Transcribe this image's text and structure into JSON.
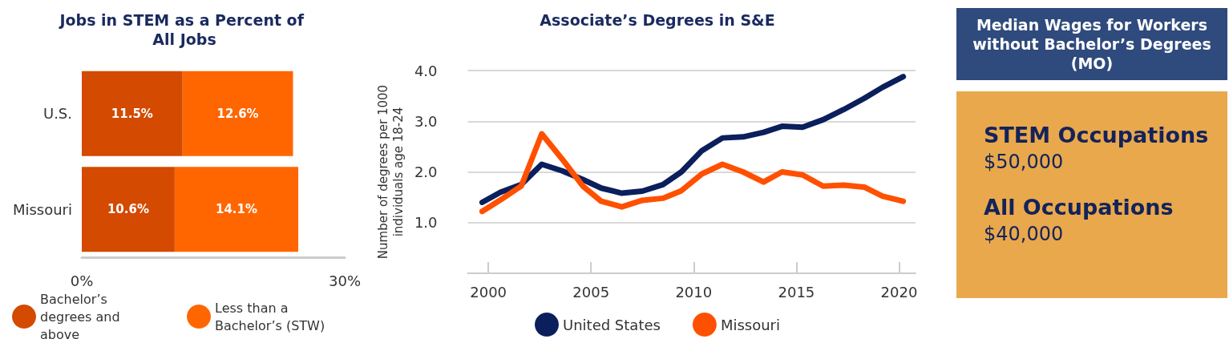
{
  "chart_data": [
    {
      "type": "bar",
      "orientation": "horizontal",
      "stacked": true,
      "title": "Jobs in STEM as a Percent of All Jobs",
      "categories": [
        "U.S.",
        "Missouri"
      ],
      "series": [
        {
          "name": "Bachelor’s degrees and above",
          "color": "#d34a00",
          "values": [
            11.5,
            10.6
          ],
          "value_labels": [
            "11.5%",
            "10.6%"
          ]
        },
        {
          "name": "Less than a Bachelor’s (STW)",
          "color": "#ff6600",
          "values": [
            12.6,
            14.1
          ],
          "value_labels": [
            "12.6%",
            "14.1%"
          ]
        }
      ],
      "xlim": [
        0,
        30
      ],
      "xticks": [
        {
          "value": 0,
          "label": "0%"
        },
        {
          "value": 30,
          "label": "30%"
        }
      ],
      "grid": false,
      "legend": "bottom"
    },
    {
      "type": "line",
      "title": "Associate’s Degrees in S&E",
      "ylabel": "Number of degrees per 1000 individuals age 18-24",
      "x": [
        1999.7,
        2000.6,
        2001.6,
        2002.6,
        2003.6,
        2004.6,
        2005.5,
        2006.5,
        2007.5,
        2008.5,
        2009.4,
        2010.4,
        2011.4,
        2012.4,
        2013.4,
        2014.3,
        2015.3,
        2016.3,
        2017.3,
        2018.3,
        2019.2,
        2020.2
      ],
      "series": [
        {
          "name": "United States",
          "color": "#0a1f5c",
          "values": [
            1.4,
            1.6,
            1.75,
            2.15,
            2.02,
            1.85,
            1.68,
            1.58,
            1.62,
            1.75,
            2.0,
            2.42,
            2.67,
            2.69,
            2.78,
            2.9,
            2.88,
            3.03,
            3.23,
            3.45,
            3.67,
            3.88
          ]
        },
        {
          "name": "Missouri",
          "color": "#ff5000",
          "values": [
            1.22,
            1.45,
            1.72,
            2.75,
            2.25,
            1.72,
            1.42,
            1.31,
            1.44,
            1.48,
            1.63,
            1.96,
            2.15,
            2.0,
            1.8,
            2.0,
            1.94,
            1.72,
            1.74,
            1.7,
            1.52,
            1.42
          ]
        }
      ],
      "xlim": [
        1999,
        2020.8
      ],
      "xticks": [
        2000,
        2005,
        2010,
        2015,
        2020
      ],
      "ylim": [
        0,
        4
      ],
      "yticks": [
        {
          "value": 0,
          "label": null
        },
        {
          "value": 1,
          "label": "1.0"
        },
        {
          "value": 2,
          "label": "2.0"
        },
        {
          "value": 3,
          "label": "3.0"
        },
        {
          "value": 4,
          "label": "4.0"
        }
      ],
      "grid": "y",
      "legend": "bottom",
      "marker": "none",
      "line_style": "solid"
    },
    {
      "type": "other",
      "title": "Median Wages for Workers without Bachelor’s Degrees (MO)",
      "annotations": [
        "STEM Occupations",
        "$50,000",
        "All Occupations",
        "$40,000"
      ]
    }
  ]
}
